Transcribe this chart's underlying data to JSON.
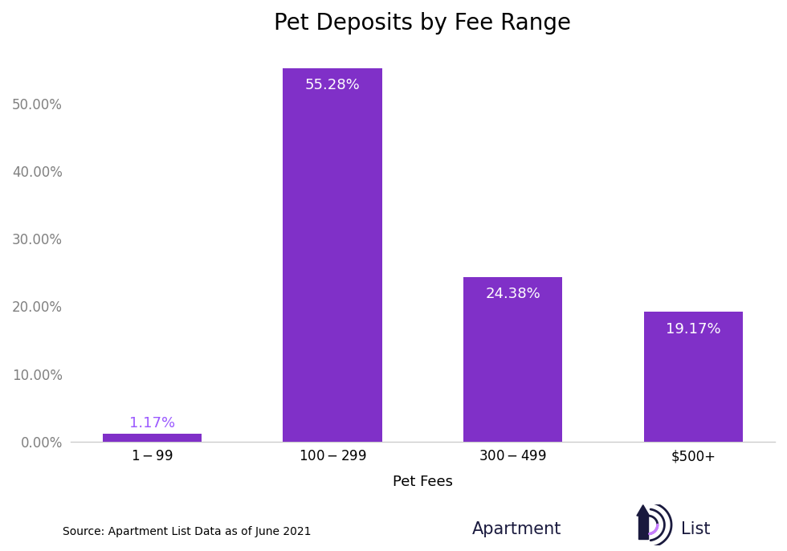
{
  "title": "Pet Deposits by Fee Range",
  "categories": [
    "$1-$99",
    "$100-$299",
    "$300-$499",
    "$500+"
  ],
  "values": [
    1.17,
    55.28,
    24.38,
    19.17
  ],
  "bar_color": "#8030C8",
  "xlabel": "Pet Fees",
  "ylim": [
    0,
    58
  ],
  "yticks": [
    0,
    10,
    20,
    30,
    40,
    50
  ],
  "ytick_labels": [
    "0.00%",
    "10.00%",
    "20.00%",
    "30.00%",
    "40.00%",
    "50.00%"
  ],
  "label_color_small": "#9B59FF",
  "label_color_large": "#ffffff",
  "source_text": "Source: Apartment List Data as of June 2021",
  "title_fontsize": 20,
  "axis_fontsize": 13,
  "tick_fontsize": 12,
  "label_fontsize": 13,
  "background_color": "#ffffff",
  "logo_text_color": "#1a1a3e",
  "logo_purple": "#7B2FBE",
  "logo_purple_light": "#C77DFF"
}
